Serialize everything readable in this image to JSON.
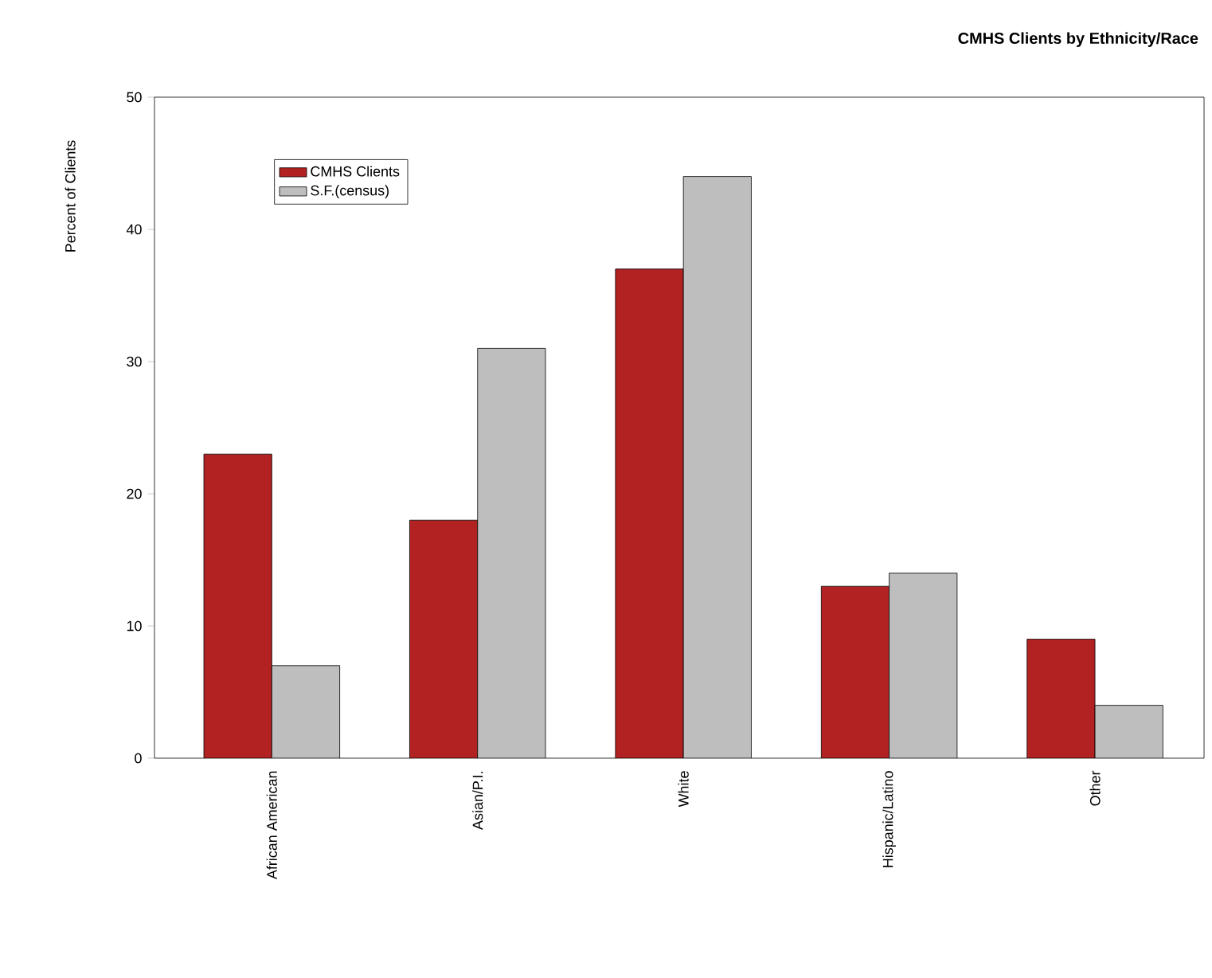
{
  "chart_data": {
    "type": "bar",
    "title": "CMHS Clients by Ethnicity/Race",
    "ylabel": "Percent of Clients",
    "categories": [
      "African American",
      "Asian/P.I.",
      "White",
      "Hispanic/Latino",
      "Other"
    ],
    "series": [
      {
        "name": "CMHS Clients",
        "color": "#b22222",
        "values": [
          23,
          18,
          37,
          13,
          9
        ]
      },
      {
        "name": "S.F.(census)",
        "color": "#bebebe",
        "values": [
          7,
          31,
          44,
          14,
          4
        ]
      }
    ],
    "ylim": [
      0,
      50
    ],
    "yticks": [
      0,
      10,
      20,
      30,
      40,
      50
    ],
    "grid": false,
    "legend": "top left"
  }
}
